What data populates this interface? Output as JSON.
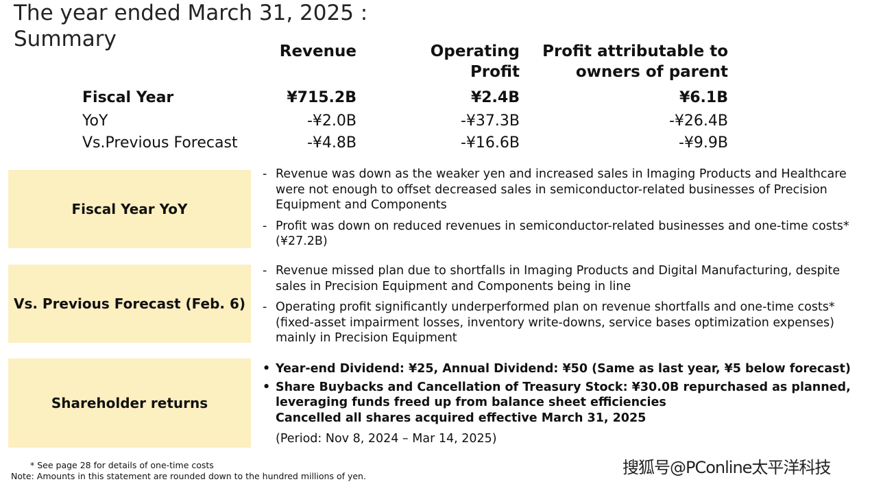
{
  "title": {
    "line1": "The year ended March 31, 2025 :",
    "line2": "Summary"
  },
  "table": {
    "headers": {
      "revenue": "Revenue",
      "operating_profit_1": "Operating",
      "operating_profit_2": "Profit",
      "profit_parent_1": "Profit attributable to",
      "profit_parent_2": "owners of parent"
    },
    "rows": [
      {
        "label": "Fiscal Year",
        "revenue": "¥715.2B",
        "operating_profit": "¥2.4B",
        "profit_parent": "¥6.1B"
      },
      {
        "label": "YoY",
        "revenue": "-¥2.0B",
        "operating_profit": "-¥37.3B",
        "profit_parent": "-¥26.4B"
      },
      {
        "label": "Vs.Previous Forecast",
        "revenue": "-¥4.8B",
        "operating_profit": "-¥16.6B",
        "profit_parent": "-¥9.9B"
      }
    ]
  },
  "sections": [
    {
      "label": "Fiscal Year YoY",
      "marker": "-",
      "items": [
        "Revenue was down as the weaker yen and increased sales in Imaging Products and Healthcare were not enough to offset decreased sales in semiconductor-related businesses of Precision Equipment and Components",
        "Profit was down on reduced revenues in semiconductor-related businesses and one-time costs* (¥27.2B)"
      ]
    },
    {
      "label": "Vs. Previous Forecast (Feb. 6)",
      "marker": "-",
      "items": [
        "Revenue missed plan due to shortfalls in Imaging Products and Digital Manufacturing, despite sales in Precision Equipment and Components being in line",
        "Operating profit significantly underperformed plan on revenue shortfalls and one-time costs* (fixed-asset impairment losses, inventory write-downs, service bases optimization expenses) mainly in Precision Equipment"
      ]
    },
    {
      "label": "Shareholder returns",
      "marker": "•",
      "items": [
        "Year-end Dividend: ¥25, Annual Dividend: ¥50 (Same as last year, ¥5 below forecast)",
        "Share Buybacks and Cancellation of Treasury Stock: ¥30.0B repurchased as planned, leveraging funds freed up from balance sheet efficiencies",
        "Cancelled all shares acquired effective March 31, 2025",
        "(Period: Nov 8, 2024 – Mar 14, 2025)"
      ]
    }
  ],
  "footnotes": {
    "one_time": "* See page 28 for details of one-time costs",
    "note": "Note: Amounts in this statement are rounded down to the hundred millions of yen."
  },
  "watermark": "搜狐号@PConline太平洋科技",
  "colors": {
    "box": "#fcefc0"
  }
}
